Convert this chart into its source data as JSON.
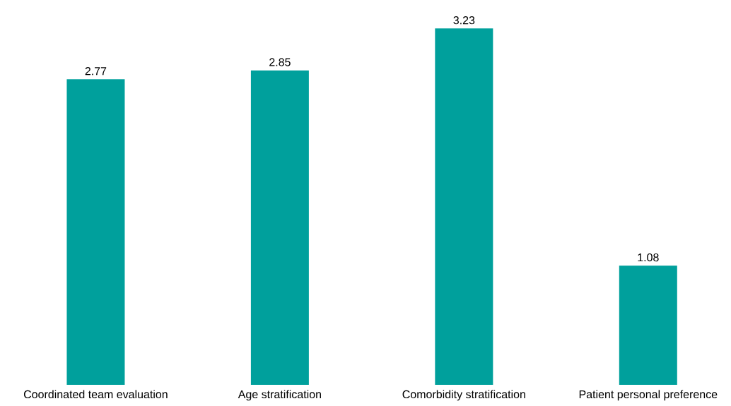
{
  "chart_data": {
    "type": "bar",
    "categories": [
      "Coordinated team evaluation",
      "Age stratification",
      "Comorbidity stratification",
      "Patient personal preference"
    ],
    "values": [
      2.77,
      2.85,
      3.23,
      1.08
    ],
    "color": "#00a09c",
    "data_labels": true
  }
}
